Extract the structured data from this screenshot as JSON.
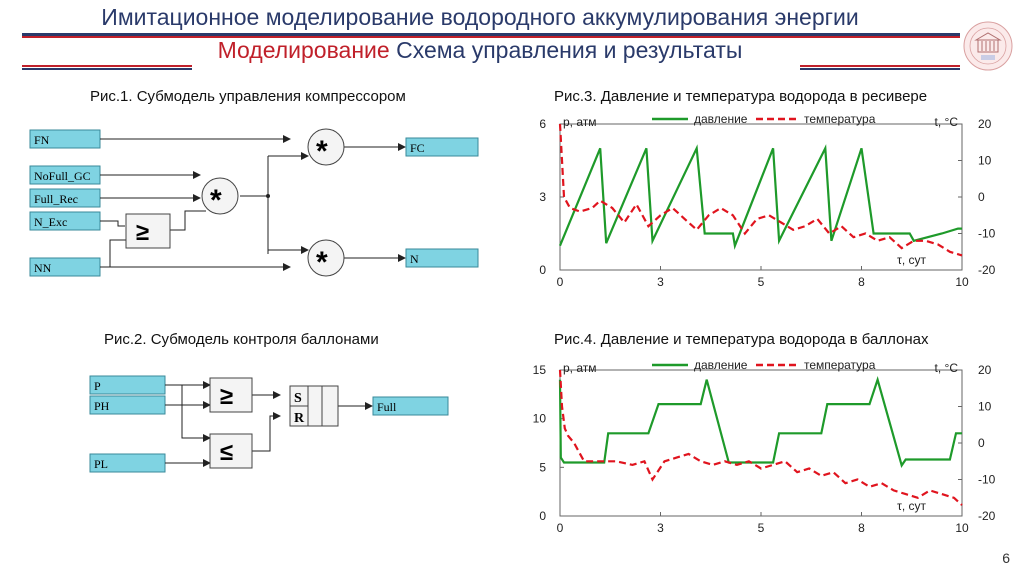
{
  "header": {
    "title": "Имитационное моделирование водородного аккумулирования энергии",
    "subtitle_red": "Моделирование",
    "subtitle_rest": " Схема управления и результаты"
  },
  "page_number": "6",
  "colors": {
    "navy": "#2a3a6a",
    "accent_red": "#c0202a",
    "block_fill": "#7fd3e2",
    "pressure": "#1e9a2a",
    "temperature": "#e0141e"
  },
  "fig1": {
    "caption": "Рис.1. Субмодель управления компрессором",
    "inputs": [
      "FN",
      "NoFull_GC",
      "Full_Rec",
      "N_Exc",
      "NN"
    ],
    "outputs": [
      "FC",
      "N"
    ],
    "mult_symbol": "*",
    "cmp_symbol": "≥"
  },
  "fig2": {
    "caption": "Рис.2. Субмодель контроля баллонами",
    "inputs": [
      "P",
      "PH",
      "PL"
    ],
    "output": "Full",
    "ge_symbol": "≥",
    "le_symbol": "≤",
    "s_label": "S",
    "r_label": "R"
  },
  "chart_data": [
    {
      "type": "line",
      "title": "Рис.3. Давление и температура водорода в ресивере",
      "ylabel": "р, атм",
      "y2label": "t, °C",
      "xlabel": "τ, сут",
      "xlim": [
        0,
        10
      ],
      "ylim": [
        0,
        6
      ],
      "y2lim": [
        -20,
        20
      ],
      "xticks": [
        "0",
        "3",
        "5",
        "8",
        "10"
      ],
      "xtick_values": [
        0,
        2.5,
        5,
        7.5,
        10
      ],
      "yticks": [
        "0",
        "3",
        "6"
      ],
      "y2ticks": [
        "20",
        "10",
        "0",
        "-10",
        "-20"
      ],
      "legend": {
        "pressure": "давление",
        "temperature": "температура"
      },
      "series": [
        {
          "name": "давление",
          "axis": "left",
          "style": "solid",
          "x": [
            0,
            1.0,
            1.15,
            2.15,
            2.3,
            3.4,
            3.6,
            4.3,
            4.35,
            5.3,
            5.45,
            6.6,
            6.75,
            7.5,
            7.8,
            7.85,
            8.7,
            8.8,
            9.5,
            9.9,
            10
          ],
          "y": [
            1.0,
            5.0,
            1.1,
            5.0,
            1.2,
            5.0,
            1.5,
            1.5,
            1.0,
            5.0,
            1.2,
            5.0,
            1.2,
            5.0,
            1.5,
            1.5,
            1.5,
            1.2,
            1.5,
            1.7,
            1.7
          ]
        },
        {
          "name": "температура",
          "axis": "right",
          "style": "dashed",
          "x": [
            0,
            0.1,
            0.25,
            0.5,
            0.8,
            1.0,
            1.3,
            1.6,
            1.9,
            2.2,
            2.5,
            2.8,
            3.1,
            3.4,
            3.7,
            4.0,
            4.3,
            4.6,
            4.9,
            5.2,
            5.5,
            5.8,
            6.1,
            6.4,
            6.7,
            7.0,
            7.3,
            7.6,
            7.9,
            8.2,
            8.5,
            8.8,
            9.1,
            9.4,
            9.7,
            10
          ],
          "y": [
            20,
            0,
            -3,
            -4,
            -3,
            -1,
            -3,
            -7,
            -2,
            -8,
            -5,
            -3,
            -6,
            -9,
            -5,
            -3,
            -5,
            -10,
            -6,
            -5,
            -7,
            -9,
            -8,
            -6,
            -10,
            -8,
            -11,
            -10,
            -12,
            -11,
            -14,
            -12,
            -12,
            -13,
            -15,
            -16
          ]
        }
      ]
    },
    {
      "type": "line",
      "title": "Рис.4. Давление и температура водорода в баллонах",
      "ylabel": "р, атм",
      "y2label": "t, °C",
      "xlabel": "τ, сут",
      "xlim": [
        0,
        10
      ],
      "ylim": [
        0,
        15
      ],
      "y2lim": [
        -20,
        20
      ],
      "xticks": [
        "0",
        "3",
        "5",
        "8",
        "10"
      ],
      "xtick_values": [
        0,
        2.5,
        5,
        7.5,
        10
      ],
      "yticks": [
        "0",
        "5",
        "10",
        "15"
      ],
      "y2ticks": [
        "20",
        "10",
        "0",
        "-10",
        "-20"
      ],
      "legend": {
        "pressure": "давление",
        "temperature": "температура"
      },
      "series": [
        {
          "name": "давление",
          "axis": "left",
          "style": "solid",
          "x": [
            0,
            0.02,
            0.1,
            1.1,
            1.2,
            2.2,
            2.45,
            3.5,
            3.65,
            4.2,
            4.35,
            5.3,
            5.45,
            6.5,
            6.65,
            7.7,
            7.9,
            8.5,
            8.6,
            9.7,
            9.85,
            10
          ],
          "y": [
            14,
            6.0,
            5.5,
            5.5,
            8.5,
            8.5,
            11.5,
            11.5,
            14.0,
            5.5,
            5.5,
            5.5,
            8.5,
            8.5,
            11.5,
            11.5,
            14.0,
            5.2,
            5.8,
            5.8,
            8.5,
            8.5
          ]
        },
        {
          "name": "температура",
          "axis": "right",
          "style": "dashed",
          "x": [
            0,
            0.05,
            0.12,
            0.2,
            0.35,
            0.6,
            1.0,
            1.4,
            1.8,
            2.1,
            2.3,
            2.6,
            2.9,
            3.2,
            3.5,
            3.8,
            4.1,
            4.4,
            4.7,
            5.0,
            5.3,
            5.6,
            5.9,
            6.2,
            6.5,
            6.8,
            7.1,
            7.4,
            7.7,
            8.0,
            8.3,
            8.6,
            8.9,
            9.2,
            9.5,
            9.8,
            10
          ],
          "y": [
            20,
            10,
            4,
            2,
            0,
            -5,
            -5,
            -5,
            -6,
            -5,
            -10,
            -5,
            -4,
            -3,
            -5,
            -6,
            -5,
            -6,
            -5,
            -7,
            -6,
            -5,
            -8,
            -7,
            -9,
            -8,
            -11,
            -10,
            -12,
            -11,
            -13,
            -14,
            -15,
            -13,
            -14,
            -15,
            -17
          ]
        }
      ]
    }
  ]
}
